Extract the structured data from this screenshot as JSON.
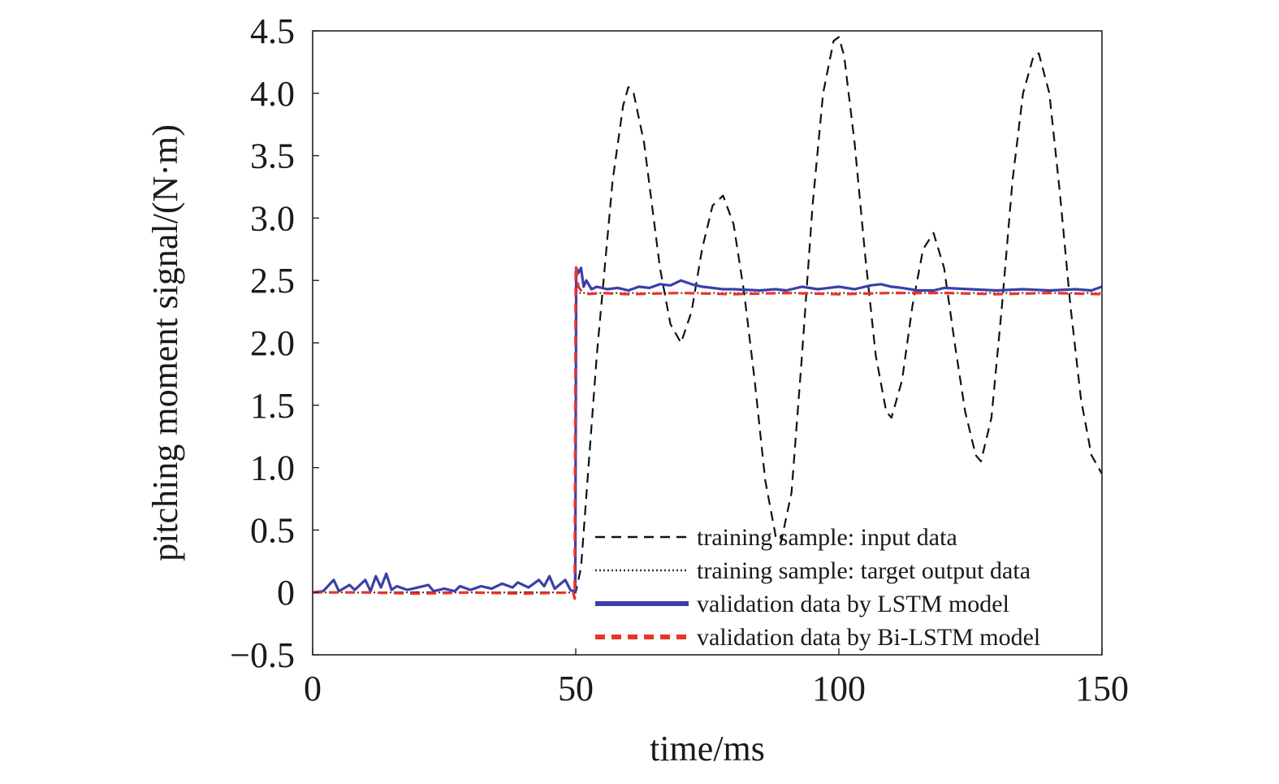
{
  "chart_data": {
    "type": "line",
    "xlabel": "time/ms",
    "ylabel": "pitching moment signal/(N·m)",
    "xlim": [
      0,
      150
    ],
    "ylim": [
      -0.5,
      4.5
    ],
    "x_ticks": [
      0,
      50,
      100,
      150
    ],
    "x_tick_labels": [
      "0",
      "50",
      "100",
      "150"
    ],
    "y_ticks": [
      -0.5,
      0,
      0.5,
      1.0,
      1.5,
      2.0,
      2.5,
      3.0,
      3.5,
      4.0,
      4.5
    ],
    "y_tick_labels": [
      "−0.5",
      "0",
      "0.5",
      "1.0",
      "1.5",
      "2.0",
      "2.5",
      "3.0",
      "3.5",
      "4.0",
      "4.5"
    ],
    "grid": false,
    "legend_position": "bottom-right",
    "series": [
      {
        "name": "training sample: input data",
        "style": "dashed",
        "color": "#111111",
        "points": [
          [
            0,
            0
          ],
          [
            50,
            0
          ],
          [
            51,
            0.2
          ],
          [
            54,
            1.9
          ],
          [
            57,
            3.3
          ],
          [
            59,
            3.9
          ],
          [
            60,
            4.05
          ],
          [
            61,
            4.0
          ],
          [
            63,
            3.6
          ],
          [
            66,
            2.6
          ],
          [
            68,
            2.15
          ],
          [
            70,
            2.0
          ],
          [
            72,
            2.25
          ],
          [
            74,
            2.75
          ],
          [
            76,
            3.1
          ],
          [
            78,
            3.18
          ],
          [
            80,
            2.95
          ],
          [
            82,
            2.4
          ],
          [
            84,
            1.7
          ],
          [
            86,
            0.9
          ],
          [
            88,
            0.45
          ],
          [
            89,
            0.4
          ],
          [
            91,
            0.8
          ],
          [
            93,
            1.9
          ],
          [
            95,
            3.1
          ],
          [
            97,
            4.0
          ],
          [
            99,
            4.42
          ],
          [
            100,
            4.45
          ],
          [
            101,
            4.3
          ],
          [
            103,
            3.6
          ],
          [
            105,
            2.7
          ],
          [
            107,
            1.9
          ],
          [
            109,
            1.45
          ],
          [
            110,
            1.4
          ],
          [
            112,
            1.7
          ],
          [
            114,
            2.3
          ],
          [
            116,
            2.75
          ],
          [
            118,
            2.88
          ],
          [
            120,
            2.6
          ],
          [
            122,
            2.0
          ],
          [
            124,
            1.45
          ],
          [
            126,
            1.1
          ],
          [
            127,
            1.05
          ],
          [
            129,
            1.4
          ],
          [
            131,
            2.3
          ],
          [
            133,
            3.3
          ],
          [
            135,
            4.0
          ],
          [
            137,
            4.3
          ],
          [
            138,
            4.32
          ],
          [
            140,
            4.0
          ],
          [
            142,
            3.2
          ],
          [
            144,
            2.3
          ],
          [
            146,
            1.55
          ],
          [
            148,
            1.1
          ],
          [
            150,
            0.95
          ]
        ]
      },
      {
        "name": "training sample: target output data",
        "style": "dotted",
        "color": "#333333",
        "points": [
          [
            0,
            0
          ],
          [
            49.8,
            0
          ],
          [
            50.1,
            2.4
          ],
          [
            150,
            2.4
          ]
        ]
      },
      {
        "name": "validation data by LSTM model",
        "style": "solid",
        "color": "#3b3fa8",
        "points": [
          [
            0,
            0
          ],
          [
            2,
            0.01
          ],
          [
            4,
            0.1
          ],
          [
            5,
            0.01
          ],
          [
            7,
            0.06
          ],
          [
            8,
            0.02
          ],
          [
            10,
            0.1
          ],
          [
            11,
            0.01
          ],
          [
            12,
            0.13
          ],
          [
            13,
            0.04
          ],
          [
            14,
            0.15
          ],
          [
            15,
            0.02
          ],
          [
            16,
            0.05
          ],
          [
            18,
            0.02
          ],
          [
            20,
            0.04
          ],
          [
            22,
            0.06
          ],
          [
            23,
            0.01
          ],
          [
            25,
            0.03
          ],
          [
            27,
            0.01
          ],
          [
            28,
            0.05
          ],
          [
            30,
            0.02
          ],
          [
            32,
            0.05
          ],
          [
            34,
            0.03
          ],
          [
            36,
            0.07
          ],
          [
            38,
            0.04
          ],
          [
            39,
            0.08
          ],
          [
            41,
            0.04
          ],
          [
            43,
            0.1
          ],
          [
            44,
            0.05
          ],
          [
            45,
            0.13
          ],
          [
            46,
            0.03
          ],
          [
            48,
            0.1
          ],
          [
            49,
            0.02
          ],
          [
            49.9,
            0.0
          ],
          [
            50.1,
            2.6
          ],
          [
            50.5,
            2.56
          ],
          [
            51,
            2.6
          ],
          [
            51.5,
            2.45
          ],
          [
            52,
            2.5
          ],
          [
            53,
            2.43
          ],
          [
            54,
            2.45
          ],
          [
            56,
            2.43
          ],
          [
            58,
            2.44
          ],
          [
            60,
            2.42
          ],
          [
            62,
            2.45
          ],
          [
            64,
            2.44
          ],
          [
            66,
            2.47
          ],
          [
            68,
            2.46
          ],
          [
            70,
            2.5
          ],
          [
            72,
            2.47
          ],
          [
            74,
            2.45
          ],
          [
            76,
            2.44
          ],
          [
            78,
            2.43
          ],
          [
            80,
            2.43
          ],
          [
            85,
            2.42
          ],
          [
            88,
            2.43
          ],
          [
            90,
            2.42
          ],
          [
            93,
            2.45
          ],
          [
            96,
            2.43
          ],
          [
            100,
            2.45
          ],
          [
            103,
            2.43
          ],
          [
            106,
            2.46
          ],
          [
            108,
            2.47
          ],
          [
            110,
            2.45
          ],
          [
            112,
            2.44
          ],
          [
            115,
            2.42
          ],
          [
            118,
            2.42
          ],
          [
            120,
            2.44
          ],
          [
            125,
            2.43
          ],
          [
            130,
            2.42
          ],
          [
            135,
            2.43
          ],
          [
            140,
            2.42
          ],
          [
            145,
            2.43
          ],
          [
            148,
            2.42
          ],
          [
            150,
            2.45
          ]
        ]
      },
      {
        "name": "validation data by Bi-LSTM model",
        "style": "dashed",
        "color": "#e8352a",
        "points": [
          [
            0,
            0
          ],
          [
            10,
            0.0
          ],
          [
            20,
            -0.01
          ],
          [
            30,
            0.0
          ],
          [
            40,
            -0.01
          ],
          [
            49.5,
            0.0
          ],
          [
            49.8,
            -0.05
          ],
          [
            50.0,
            2.62
          ],
          [
            50.5,
            2.45
          ],
          [
            51,
            2.42
          ],
          [
            52,
            2.39
          ],
          [
            55,
            2.4
          ],
          [
            60,
            2.39
          ],
          [
            70,
            2.4
          ],
          [
            80,
            2.39
          ],
          [
            90,
            2.4
          ],
          [
            100,
            2.39
          ],
          [
            110,
            2.4
          ],
          [
            120,
            2.4
          ],
          [
            130,
            2.39
          ],
          [
            140,
            2.4
          ],
          [
            150,
            2.39
          ]
        ]
      }
    ]
  }
}
